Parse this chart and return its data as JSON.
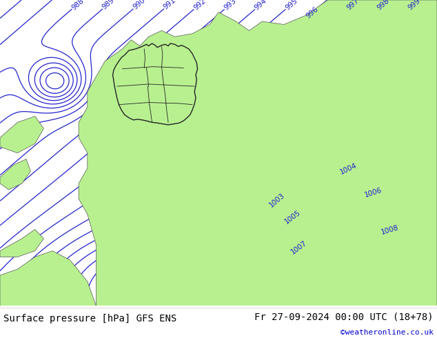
{
  "title_left": "Surface pressure [hPa] GFS ENS",
  "title_right": "Fr 27-09-2024 00:00 UTC (18+78)",
  "credit": "©weatheronline.co.uk",
  "sea_color": "#d0d0d0",
  "land_color": "#b8f090",
  "border_color": "#555555",
  "isobar_color": "#2222cc",
  "isobar_linewidth": 0.9,
  "label_color": "#2222cc",
  "label_fontsize": 7.5,
  "text_color_left": "#000000",
  "text_color_right": "#000000",
  "credit_color": "#0000cc",
  "font_size_bottom": 10,
  "font_size_credit": 8,
  "bar_color": "#ffffff"
}
